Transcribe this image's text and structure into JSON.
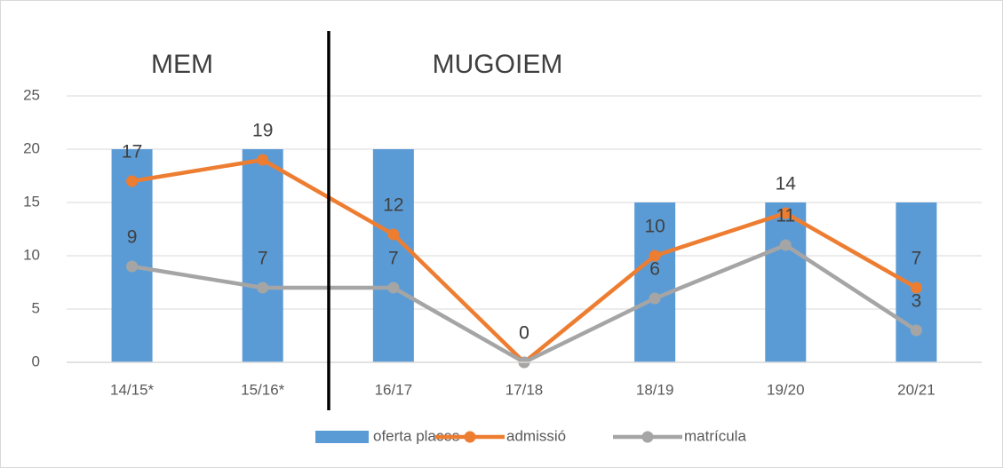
{
  "chart_data": {
    "type": "bar-line",
    "categories": [
      "14/15*",
      "15/16*",
      "16/17",
      "17/18",
      "18/19",
      "19/20",
      "20/21"
    ],
    "series": [
      {
        "name": "oferta places",
        "color": "#5b9bd5",
        "kind": "bar",
        "values": [
          20,
          20,
          20,
          0,
          15,
          15,
          15
        ]
      },
      {
        "name": "admissió",
        "color": "#ed7d31",
        "kind": "line",
        "values": [
          17,
          19,
          12,
          0,
          10,
          14,
          7
        ]
      },
      {
        "name": "matrícula",
        "color": "#a5a5a5",
        "kind": "line",
        "values": [
          9,
          7,
          7,
          0,
          6,
          11,
          3
        ]
      }
    ],
    "annotations": [
      "MEM",
      "MUGOIEM"
    ],
    "ylim": [
      0,
      25
    ],
    "yticks": [
      0,
      5,
      10,
      15,
      20,
      25
    ],
    "grid": true,
    "legend": "bottom"
  }
}
